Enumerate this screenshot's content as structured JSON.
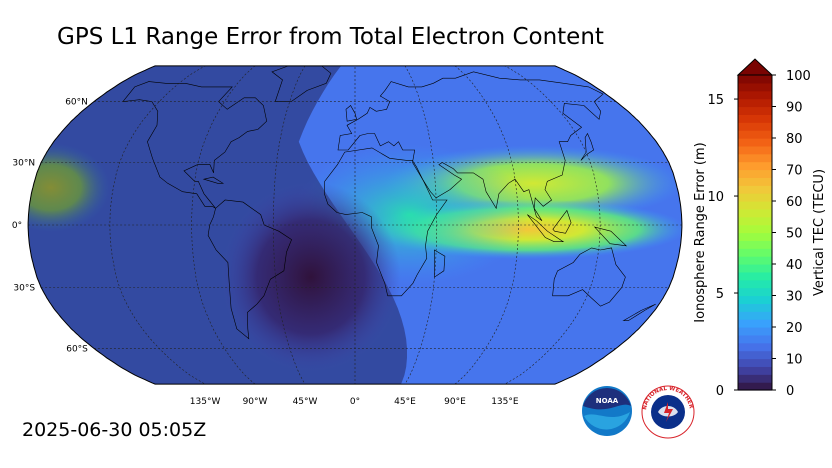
{
  "title": "GPS L1 Range Error from Total Electron Content",
  "timestamp": "2025-06-30 05:05Z",
  "map": {
    "projection": "robinson",
    "lat_labels": [
      "60°N",
      "30°N",
      "0°",
      "30°S",
      "60°S"
    ],
    "lat_values": [
      60,
      30,
      0,
      -30,
      -60
    ],
    "lon_labels": [
      "135°W",
      "90°W",
      "45°W",
      "0°",
      "45°E",
      "90°E",
      "135°E"
    ],
    "lon_values": [
      -135,
      -90,
      -45,
      0,
      45,
      90,
      135
    ],
    "gridlines": true
  },
  "colorbar": {
    "tec_label": "Vertical TEC (TECU)",
    "range_label": "Ionosphere Range Error (m)",
    "tec_ticks": [
      "0",
      "10",
      "20",
      "30",
      "40",
      "50",
      "60",
      "70",
      "80",
      "90",
      "100"
    ],
    "tec_values": [
      0,
      10,
      20,
      30,
      40,
      50,
      60,
      70,
      80,
      90,
      100
    ],
    "range_ticks": [
      "0",
      "5",
      "10",
      "15"
    ],
    "range_values": [
      0,
      5,
      10,
      15
    ],
    "range_max_m": 16.24,
    "extend": "max"
  },
  "logos": {
    "noaa_text": "NOAA",
    "nws_text": "NATIONAL WEATHER SERVICE"
  },
  "colors": {
    "cmap": [
      "#30123b",
      "#4145ab",
      "#4675ed",
      "#39a2fc",
      "#1bcfd4",
      "#24eca6",
      "#61fc6c",
      "#a4fc3b",
      "#d1e834",
      "#f3c63a",
      "#fe9b2d",
      "#f36315",
      "#d93806",
      "#b11901",
      "#7a0402"
    ]
  }
}
